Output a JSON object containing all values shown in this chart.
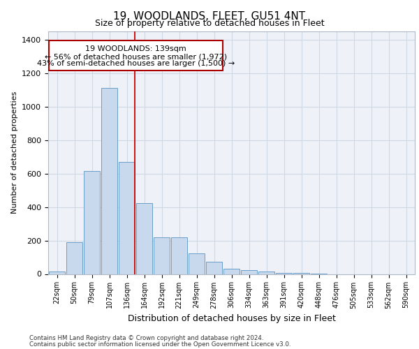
{
  "title": "19, WOODLANDS, FLEET, GU51 4NT",
  "subtitle": "Size of property relative to detached houses in Fleet",
  "xlabel": "Distribution of detached houses by size in Fleet",
  "ylabel": "Number of detached properties",
  "categories": [
    "22sqm",
    "50sqm",
    "79sqm",
    "107sqm",
    "136sqm",
    "164sqm",
    "192sqm",
    "221sqm",
    "249sqm",
    "278sqm",
    "306sqm",
    "334sqm",
    "363sqm",
    "391sqm",
    "420sqm",
    "448sqm",
    "476sqm",
    "505sqm",
    "533sqm",
    "562sqm",
    "590sqm"
  ],
  "values": [
    15,
    190,
    615,
    1110,
    670,
    425,
    220,
    220,
    125,
    75,
    30,
    25,
    15,
    5,
    5,
    2,
    0,
    0,
    0,
    0,
    0
  ],
  "bar_color": "#c9d9ed",
  "bar_edge_color": "#6a9ec8",
  "grid_color": "#d0d8e4",
  "background_color": "#eef2f8",
  "annotation_line1": "19 WOODLANDS: 139sqm",
  "annotation_line2": "← 56% of detached houses are smaller (1,972)",
  "annotation_line3": "43% of semi-detached houses are larger (1,500) →",
  "annotation_box_edge_color": "#aa0000",
  "red_line_x": 4.45,
  "ylim": [
    0,
    1450
  ],
  "yticks": [
    0,
    200,
    400,
    600,
    800,
    1000,
    1200,
    1400
  ],
  "footer_line1": "Contains HM Land Registry data © Crown copyright and database right 2024.",
  "footer_line2": "Contains public sector information licensed under the Open Government Licence v3.0."
}
